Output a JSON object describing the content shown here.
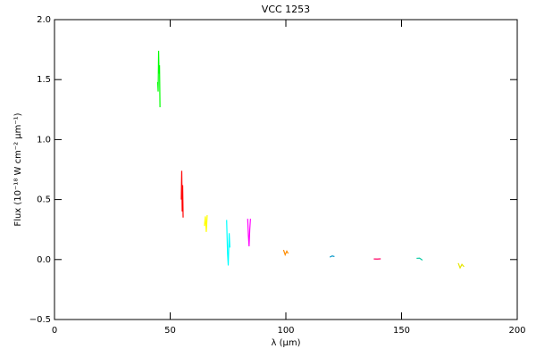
{
  "chart_data": {
    "type": "line",
    "title": "VCC 1253",
    "x_label": "λ (μm)",
    "y_label": "Flux (10⁻¹⁸ W cm⁻² μm⁻¹)",
    "xlim": [
      0,
      200
    ],
    "xticks": [
      0,
      50,
      100,
      150,
      200
    ],
    "ylim": [
      -0.5,
      2.0
    ],
    "yticks": [
      {
        "value": -0.5,
        "label": "−0.5"
      },
      {
        "value": 0,
        "label": "0.0"
      },
      0.5,
      {
        "value": 1,
        "label": "1.0"
      },
      1.5,
      {
        "value": 2,
        "label": "2.0"
      }
    ],
    "grid": false,
    "series": [
      {
        "color": "#00ff00",
        "x": [
          44.6,
          44.8,
          45.0,
          45.2,
          45.4,
          45.6
        ],
        "values": [
          1.48,
          1.4,
          1.74,
          1.55,
          1.62,
          1.27
        ]
      },
      {
        "color": "#ff0000",
        "x": [
          54.8,
          55.0,
          55.2,
          55.4,
          55.6
        ],
        "values": [
          0.5,
          0.74,
          0.4,
          0.62,
          0.35
        ]
      },
      {
        "color": "#ffff00",
        "x": [
          64.8,
          65.2,
          65.6,
          66.0
        ],
        "values": [
          0.28,
          0.36,
          0.23,
          0.37
        ]
      },
      {
        "color": "#00ffff",
        "x": [
          74.4,
          74.8,
          75.1,
          75.5,
          75.8
        ],
        "values": [
          0.33,
          0.05,
          -0.05,
          0.22,
          0.1
        ]
      },
      {
        "color": "#ff00ff",
        "x": [
          83.5,
          83.8,
          84.1,
          84.4,
          84.7
        ],
        "values": [
          0.34,
          0.2,
          0.11,
          0.25,
          0.34
        ]
      },
      {
        "color": "#ff8c00",
        "x": [
          99.0,
          99.7,
          100.4,
          101.0
        ],
        "values": [
          0.08,
          0.04,
          0.07,
          0.05
        ]
      },
      {
        "color": "#0096c8",
        "x": [
          119.0,
          120.0,
          121.0
        ],
        "values": [
          0.02,
          0.03,
          0.025
        ]
      },
      {
        "color": "#ff0064",
        "x": [
          138.0,
          139.5,
          141.0
        ],
        "values": [
          0.005,
          0.004,
          0.006
        ]
      },
      {
        "color": "#00c8a0",
        "x": [
          156.5,
          157.8,
          159.0
        ],
        "values": [
          0.01,
          0.012,
          -0.005
        ]
      },
      {
        "color": "#e6e600",
        "x": [
          174.5,
          175.3,
          176.1,
          177.0
        ],
        "values": [
          -0.03,
          -0.07,
          -0.04,
          -0.06
        ]
      }
    ]
  }
}
